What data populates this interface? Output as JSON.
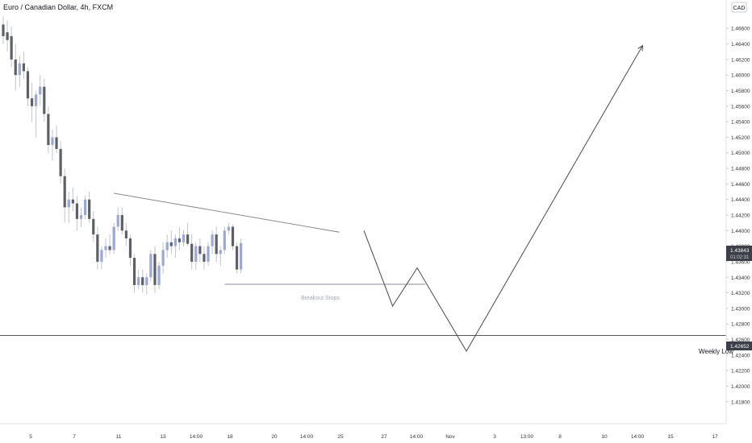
{
  "header": {
    "title": "Euro / Canadian Dollar, 4h, FXCM",
    "currency": "CAD"
  },
  "colors": {
    "candle_down": "#5d6066",
    "candle_up": "#9aa8d8",
    "wick": "#bfc3cc",
    "drawing": "#4a4a4a",
    "axis_text": "#333333",
    "price_tag_bg": "#3c3f47"
  },
  "price_tags": {
    "current_price": "1.43843",
    "countdown": "01:02:31",
    "weekly_low": "1.42652"
  },
  "annotations": {
    "weekly_low_label": "Weekly Low",
    "breakout_label": "Breakout Stops"
  },
  "chart_data": {
    "type": "candlestick",
    "title": "Euro / Canadian Dollar, 4h, FXCM",
    "y_axis_currency": "CAD",
    "ylim": [
      1.4158,
      1.4682
    ],
    "y_ticks": [
      "1.46600",
      "1.46400",
      "1.46200",
      "1.46000",
      "1.45800",
      "1.45600",
      "1.45400",
      "1.45200",
      "1.45000",
      "1.44800",
      "1.44600",
      "1.44400",
      "1.44200",
      "1.44000",
      "1.43800",
      "1.43600",
      "1.43400",
      "1.43200",
      "1.43000",
      "1.42800",
      "1.42600",
      "1.42400",
      "1.42200",
      "1.42000",
      "1.41800"
    ],
    "x_ticks": [
      "5",
      "7",
      "11",
      "13",
      "14:00",
      "18",
      "20",
      "14:00",
      "25",
      "27",
      "14:00",
      "Nov",
      "3",
      "13:00",
      "8",
      "10",
      "14:00",
      "15",
      "17"
    ],
    "candles": [
      {
        "o": 1.4665,
        "h": 1.4675,
        "l": 1.464,
        "c": 1.465
      },
      {
        "o": 1.4655,
        "h": 1.467,
        "l": 1.463,
        "c": 1.4645
      },
      {
        "o": 1.465,
        "h": 1.4662,
        "l": 1.461,
        "c": 1.462
      },
      {
        "o": 1.462,
        "h": 1.464,
        "l": 1.458,
        "c": 1.46
      },
      {
        "o": 1.46,
        "h": 1.4625,
        "l": 1.4585,
        "c": 1.4615
      },
      {
        "o": 1.4615,
        "h": 1.463,
        "l": 1.4595,
        "c": 1.4605
      },
      {
        "o": 1.4605,
        "h": 1.461,
        "l": 1.456,
        "c": 1.457
      },
      {
        "o": 1.457,
        "h": 1.459,
        "l": 1.454,
        "c": 1.456
      },
      {
        "o": 1.456,
        "h": 1.458,
        "l": 1.452,
        "c": 1.4575
      },
      {
        "o": 1.4575,
        "h": 1.46,
        "l": 1.456,
        "c": 1.4585
      },
      {
        "o": 1.4585,
        "h": 1.4595,
        "l": 1.454,
        "c": 1.455
      },
      {
        "o": 1.455,
        "h": 1.456,
        "l": 1.45,
        "c": 1.451
      },
      {
        "o": 1.451,
        "h": 1.453,
        "l": 1.449,
        "c": 1.452
      },
      {
        "o": 1.452,
        "h": 1.4535,
        "l": 1.45,
        "c": 1.4505
      },
      {
        "o": 1.4505,
        "h": 1.4515,
        "l": 1.446,
        "c": 1.447
      },
      {
        "o": 1.447,
        "h": 1.448,
        "l": 1.441,
        "c": 1.443
      },
      {
        "o": 1.443,
        "h": 1.445,
        "l": 1.441,
        "c": 1.444
      },
      {
        "o": 1.444,
        "h": 1.4455,
        "l": 1.4425,
        "c": 1.4435
      },
      {
        "o": 1.4435,
        "h": 1.4445,
        "l": 1.44,
        "c": 1.4415
      },
      {
        "o": 1.4415,
        "h": 1.443,
        "l": 1.4405,
        "c": 1.442
      },
      {
        "o": 1.442,
        "h": 1.4445,
        "l": 1.4415,
        "c": 1.444
      },
      {
        "o": 1.444,
        "h": 1.445,
        "l": 1.441,
        "c": 1.4415
      },
      {
        "o": 1.4415,
        "h": 1.4425,
        "l": 1.4385,
        "c": 1.4395
      },
      {
        "o": 1.4395,
        "h": 1.4405,
        "l": 1.435,
        "c": 1.436
      },
      {
        "o": 1.436,
        "h": 1.438,
        "l": 1.435,
        "c": 1.4375
      },
      {
        "o": 1.4375,
        "h": 1.439,
        "l": 1.4365,
        "c": 1.438
      },
      {
        "o": 1.438,
        "h": 1.4395,
        "l": 1.437,
        "c": 1.4375
      },
      {
        "o": 1.4375,
        "h": 1.441,
        "l": 1.437,
        "c": 1.4405
      },
      {
        "o": 1.4405,
        "h": 1.443,
        "l": 1.44,
        "c": 1.442
      },
      {
        "o": 1.442,
        "h": 1.443,
        "l": 1.4395,
        "c": 1.44
      },
      {
        "o": 1.44,
        "h": 1.441,
        "l": 1.438,
        "c": 1.439
      },
      {
        "o": 1.439,
        "h": 1.4395,
        "l": 1.4355,
        "c": 1.4365
      },
      {
        "o": 1.4365,
        "h": 1.437,
        "l": 1.432,
        "c": 1.433
      },
      {
        "o": 1.433,
        "h": 1.435,
        "l": 1.4325,
        "c": 1.434
      },
      {
        "o": 1.434,
        "h": 1.435,
        "l": 1.432,
        "c": 1.433
      },
      {
        "o": 1.433,
        "h": 1.4345,
        "l": 1.4318,
        "c": 1.434
      },
      {
        "o": 1.434,
        "h": 1.4375,
        "l": 1.4335,
        "c": 1.437
      },
      {
        "o": 1.437,
        "h": 1.438,
        "l": 1.432,
        "c": 1.433
      },
      {
        "o": 1.433,
        "h": 1.436,
        "l": 1.4325,
        "c": 1.4355
      },
      {
        "o": 1.4355,
        "h": 1.4385,
        "l": 1.4345,
        "c": 1.4375
      },
      {
        "o": 1.4375,
        "h": 1.4395,
        "l": 1.4365,
        "c": 1.4385
      },
      {
        "o": 1.4385,
        "h": 1.44,
        "l": 1.437,
        "c": 1.438
      },
      {
        "o": 1.438,
        "h": 1.4395,
        "l": 1.4365,
        "c": 1.439
      },
      {
        "o": 1.439,
        "h": 1.4405,
        "l": 1.4375,
        "c": 1.4385
      },
      {
        "o": 1.4385,
        "h": 1.44,
        "l": 1.438,
        "c": 1.4395
      },
      {
        "o": 1.4395,
        "h": 1.441,
        "l": 1.438,
        "c": 1.4383
      },
      {
        "o": 1.4383,
        "h": 1.4395,
        "l": 1.435,
        "c": 1.436
      },
      {
        "o": 1.436,
        "h": 1.4385,
        "l": 1.435,
        "c": 1.438
      },
      {
        "o": 1.438,
        "h": 1.439,
        "l": 1.436,
        "c": 1.437
      },
      {
        "o": 1.437,
        "h": 1.438,
        "l": 1.435,
        "c": 1.436
      },
      {
        "o": 1.436,
        "h": 1.4385,
        "l": 1.4355,
        "c": 1.438
      },
      {
        "o": 1.438,
        "h": 1.44,
        "l": 1.437,
        "c": 1.4395
      },
      {
        "o": 1.4395,
        "h": 1.4405,
        "l": 1.436,
        "c": 1.437
      },
      {
        "o": 1.437,
        "h": 1.438,
        "l": 1.4355,
        "c": 1.4375
      },
      {
        "o": 1.4375,
        "h": 1.4405,
        "l": 1.437,
        "c": 1.44
      },
      {
        "o": 1.44,
        "h": 1.441,
        "l": 1.4395,
        "c": 1.4405
      },
      {
        "o": 1.4405,
        "h": 1.4408,
        "l": 1.4375,
        "c": 1.438
      },
      {
        "o": 1.438,
        "h": 1.4385,
        "l": 1.4345,
        "c": 1.435
      },
      {
        "o": 1.435,
        "h": 1.439,
        "l": 1.4345,
        "c": 1.4384
      }
    ],
    "drawings": {
      "trendline": {
        "t1": 27,
        "p1": 1.4448,
        "t2": 82,
        "p2": 1.4398
      },
      "support_line": {
        "t1": 54,
        "p1": 1.4331,
        "t2": 103,
        "p2": 1.4331
      },
      "weekly_low_level": 1.42652,
      "projection_path": [
        {
          "t": 88,
          "p": 1.44
        },
        {
          "t": 95,
          "p": 1.4303
        },
        {
          "t": 101,
          "p": 1.4352
        },
        {
          "t": 113,
          "p": 1.4245
        },
        {
          "t": 156,
          "p": 1.4638
        }
      ]
    }
  }
}
